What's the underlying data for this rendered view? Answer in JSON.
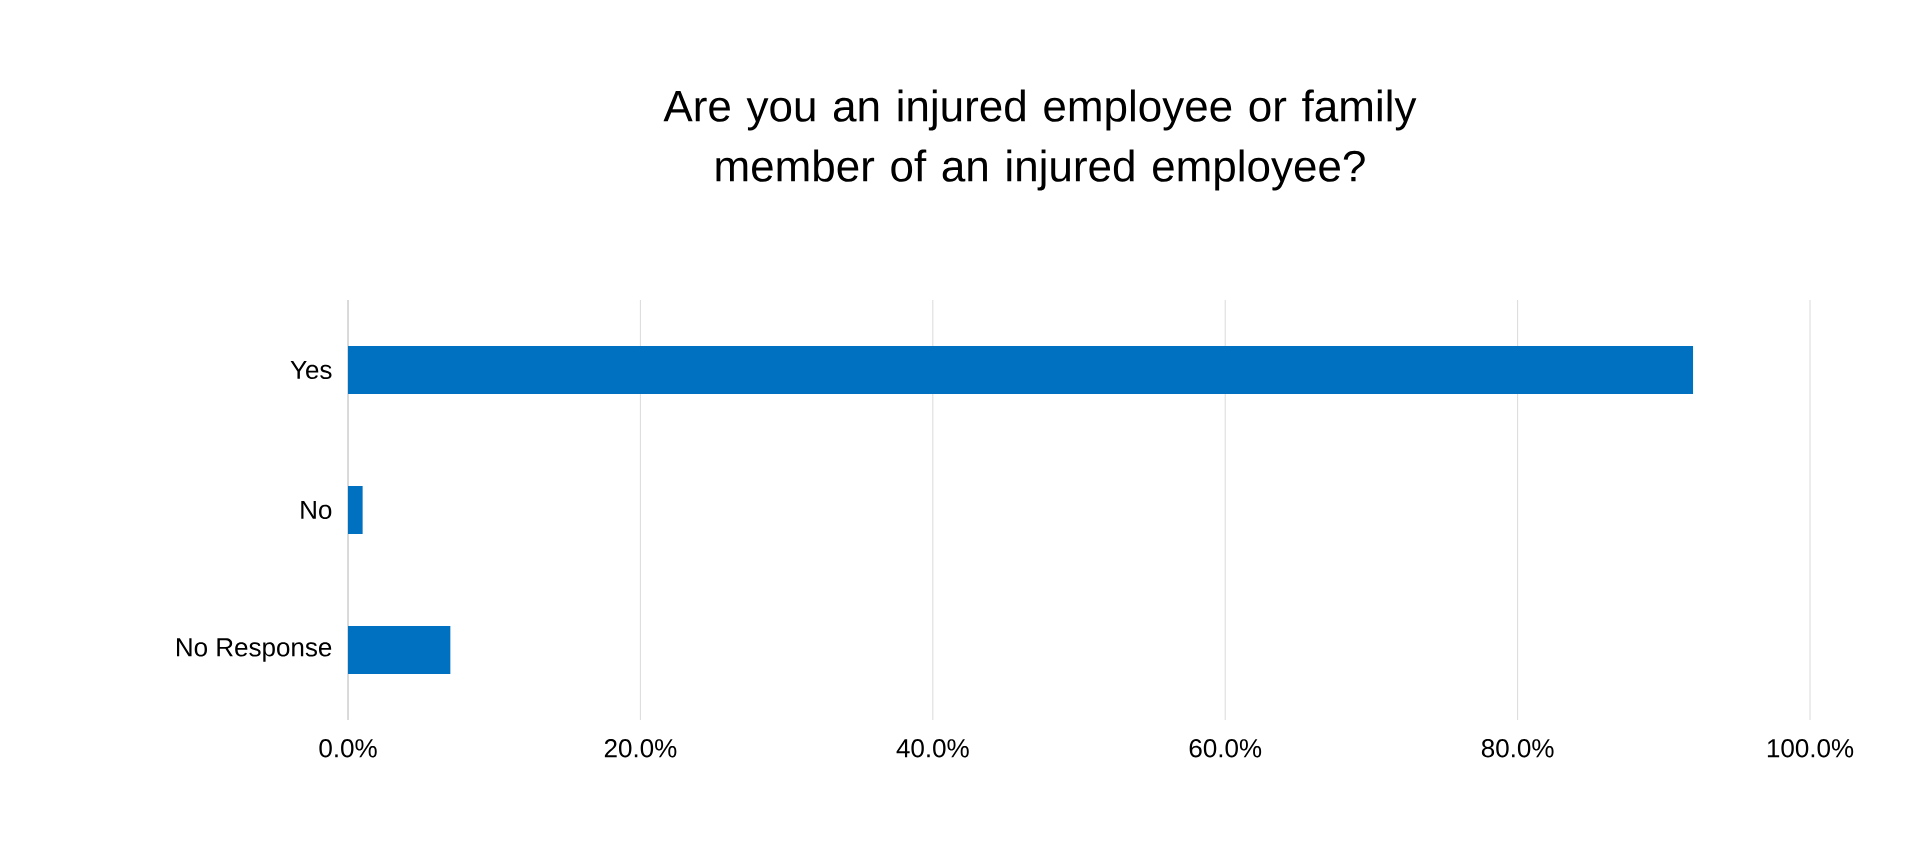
{
  "chart_data": {
    "type": "bar",
    "orientation": "horizontal",
    "title": "Are you an injured employee or family member of an injured employee?",
    "categories": [
      "Yes",
      "No",
      "No Response"
    ],
    "values": [
      92,
      1,
      7
    ],
    "color": "#0070c0",
    "xlim": [
      0,
      100
    ],
    "xticks": [
      {
        "value": 0,
        "label": "0.0%"
      },
      {
        "value": 20,
        "label": "20.0%"
      },
      {
        "value": 40,
        "label": "40.0%"
      },
      {
        "value": 60,
        "label": "60.0%"
      },
      {
        "value": 80,
        "label": "80.0%"
      },
      {
        "value": 100,
        "label": "100.0%"
      }
    ],
    "grid": "x"
  }
}
